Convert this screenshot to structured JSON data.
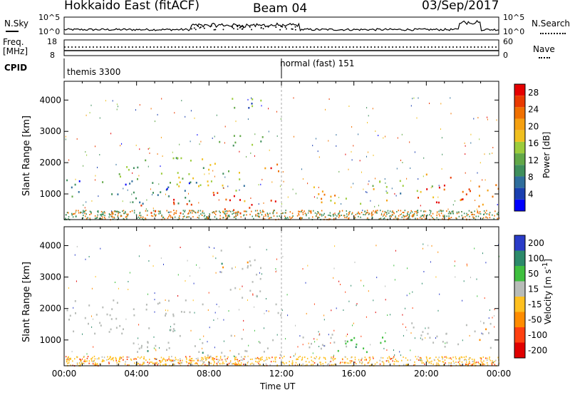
{
  "header": {
    "station": "Hokkaido East (fitACF)",
    "beam": "Beam 04",
    "date": "03/Sep/2017"
  },
  "summary": {
    "nsky_label": "N.Sky",
    "nsearch_label": "N.Search",
    "noise_ticks": [
      "10^5",
      "10^0"
    ],
    "freq_label_line1": "Freq.",
    "freq_label_line2": "[MHz]",
    "freq_ticks": [
      "18",
      "8"
    ],
    "nave_label": "Nave",
    "nave_ticks": [
      "60",
      "0"
    ],
    "cpid_label": "CPID",
    "cpid_segments": [
      {
        "label": "themis 3300",
        "start_hour": 0
      },
      {
        "label": "normal (fast) 151",
        "start_hour": 12
      }
    ]
  },
  "axes": {
    "time_ticks": [
      "00:00",
      "04:00",
      "08:00",
      "12:00",
      "16:00",
      "20:00",
      "00:00"
    ],
    "time_label": "Time UT",
    "range_ticks": [
      "1000",
      "2000",
      "3000",
      "4000"
    ],
    "range_label": "Slant Range [km]"
  },
  "colors": {
    "power": [
      "#0000ff",
      "#1a3fb0",
      "#2f6e9c",
      "#3f8f5c",
      "#62a848",
      "#9ccc3c",
      "#f0c020",
      "#f5a010",
      "#f07000",
      "#ea3a00",
      "#e60000"
    ],
    "velocity": [
      "#2a3cc8",
      "#2c8a6a",
      "#3fbf3f",
      "#b8bcb8",
      "#ffc020",
      "#ff8c00",
      "#ff4010",
      "#e00000"
    ]
  },
  "chart_data": [
    {
      "type": "heatmap",
      "title": "",
      "xlabel": "Time UT",
      "ylabel": "Slant Range [km]",
      "xlim": [
        0,
        24
      ],
      "ylim": [
        180,
        4600
      ],
      "colorbar_label": "Power [dB]",
      "colorbar_ticks": [
        "4",
        "8",
        "12",
        "16",
        "20",
        "24",
        "28"
      ],
      "regions": [
        {
          "t0": 0,
          "t1": 7.5,
          "r0": 700,
          "r1": 1500,
          "value": 8
        },
        {
          "t0": 3.0,
          "t1": 7.0,
          "r0": 1500,
          "r1": 2200,
          "value": 12
        },
        {
          "t0": 4.0,
          "t1": 5.5,
          "r0": 400,
          "r1": 700,
          "value": 26
        },
        {
          "t0": 6.0,
          "t1": 11.8,
          "r0": 400,
          "r1": 1100,
          "value": 28
        },
        {
          "t0": 6.0,
          "t1": 10.0,
          "r0": 1100,
          "r1": 2200,
          "value": 16
        },
        {
          "t0": 8.5,
          "t1": 11.0,
          "r0": 2400,
          "r1": 3000,
          "value": 12
        },
        {
          "t0": 9.0,
          "t1": 11.0,
          "r0": 3500,
          "r1": 4100,
          "value": 14
        },
        {
          "t0": 10.8,
          "t1": 12.0,
          "r0": 1700,
          "r1": 2300,
          "value": 28
        },
        {
          "t0": 13.5,
          "t1": 17.8,
          "r0": 700,
          "r1": 1300,
          "value": 22
        },
        {
          "t0": 16.5,
          "t1": 20.5,
          "r0": 1000,
          "r1": 1500,
          "value": 14
        },
        {
          "t0": 19.5,
          "t1": 22.5,
          "r0": 700,
          "r1": 1700,
          "value": 28
        },
        {
          "t0": 22.5,
          "t1": 24.0,
          "r0": 600,
          "r1": 1500,
          "value": 22
        }
      ]
    },
    {
      "type": "heatmap",
      "title": "",
      "xlabel": "Time UT",
      "ylabel": "Slant Range [km]",
      "xlim": [
        0,
        24
      ],
      "ylim": [
        180,
        4600
      ],
      "colorbar_label": "Velocity [m s^-1]",
      "colorbar_ticks": [
        "200",
        "100",
        "50",
        "15",
        "-15",
        "-50",
        "-100",
        "-200"
      ],
      "regions": [
        {
          "t0": 0,
          "t1": 7.5,
          "r0": 300,
          "r1": 500,
          "value": -40
        },
        {
          "t0": 0,
          "t1": 8.0,
          "r0": 1200,
          "r1": 2300,
          "value": 0
        },
        {
          "t0": 3.8,
          "t1": 12.0,
          "r0": 500,
          "r1": 1200,
          "value": 0
        },
        {
          "t0": 8.5,
          "t1": 11.0,
          "r0": 2300,
          "r1": 4000,
          "value": 0
        },
        {
          "t0": 10.5,
          "t1": 12.0,
          "r0": 1800,
          "r1": 2200,
          "value": 0
        },
        {
          "t0": 13.0,
          "t1": 16.5,
          "r0": 700,
          "r1": 1300,
          "value": 5
        },
        {
          "t0": 14.5,
          "t1": 18.5,
          "r0": 600,
          "r1": 1200,
          "value": 40
        },
        {
          "t0": 19.0,
          "t1": 24.0,
          "r0": 700,
          "r1": 1600,
          "value": 0
        }
      ]
    }
  ]
}
